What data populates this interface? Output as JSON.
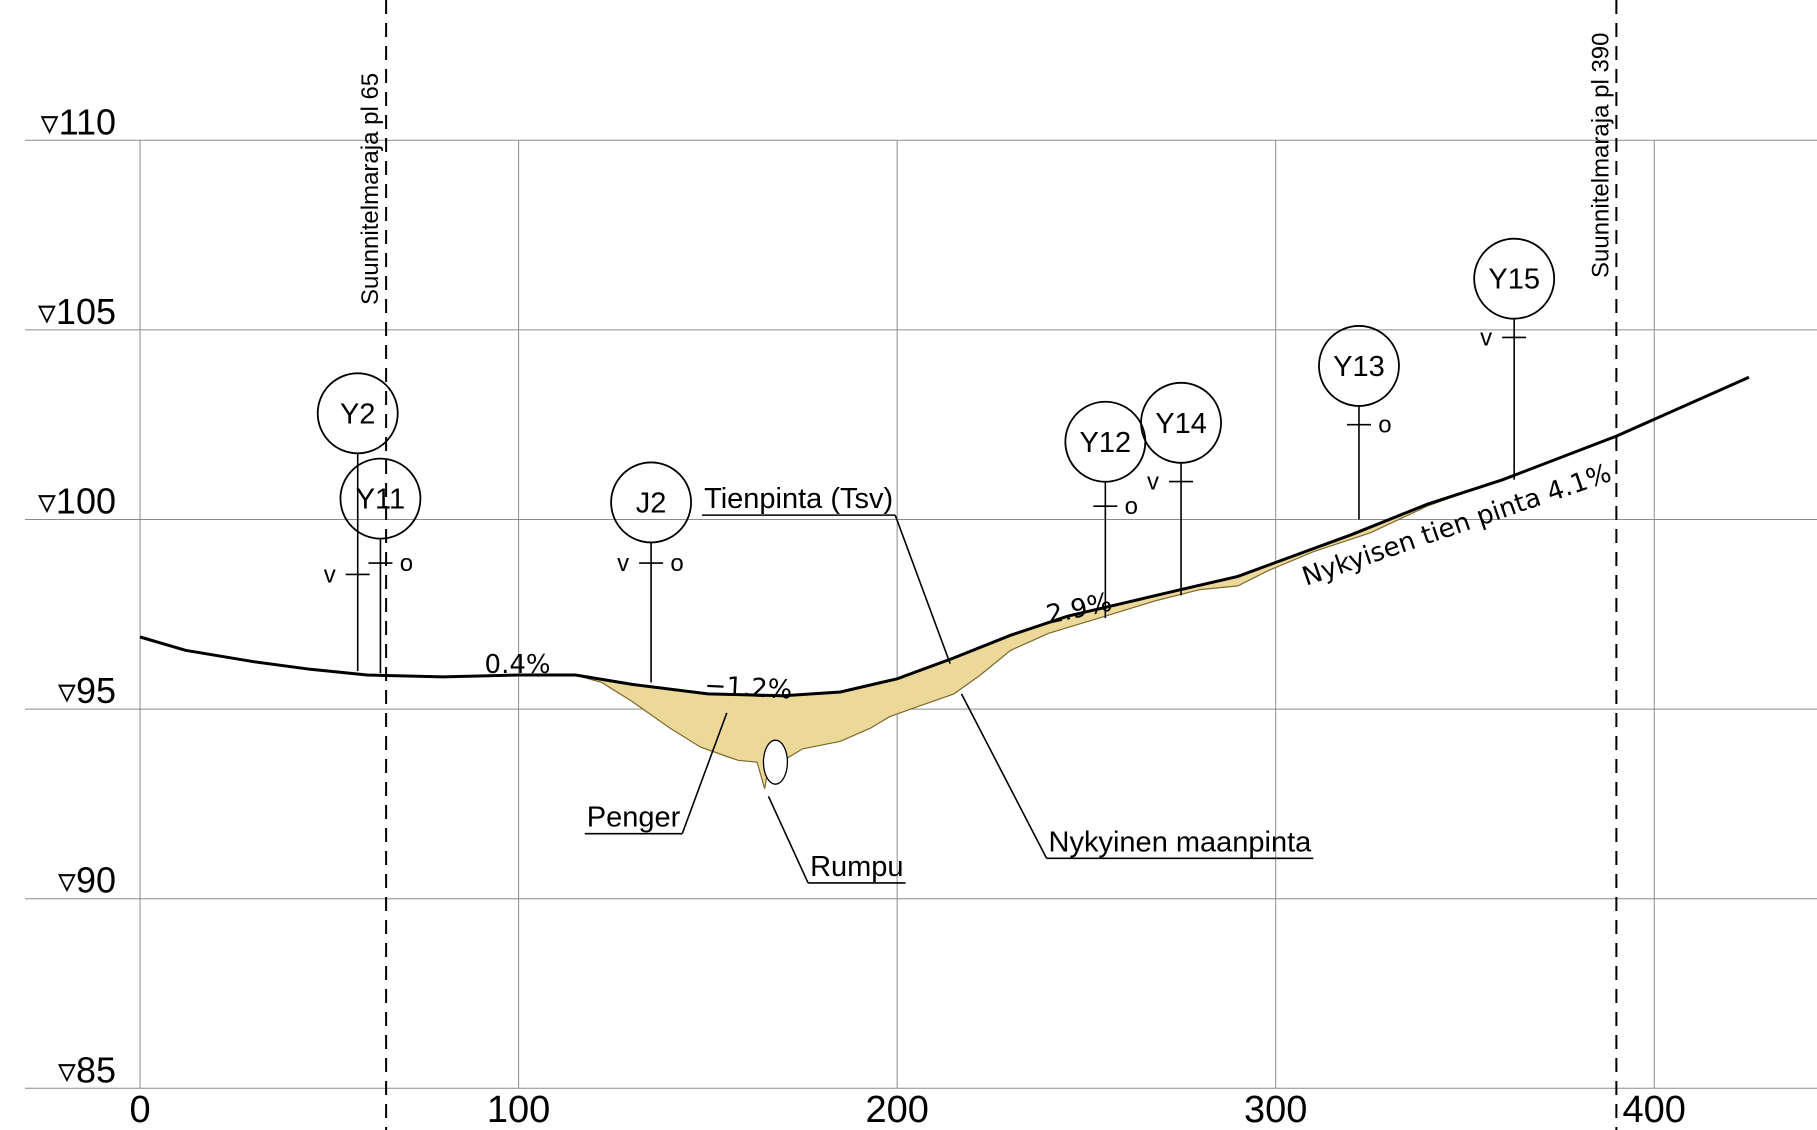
{
  "axes": {
    "x_ticks": [
      "0",
      "100",
      "200",
      "300",
      "400"
    ],
    "y_ticks": [
      "▿110",
      "▿105",
      "▿100",
      "▿95",
      "▿90",
      "▿85"
    ],
    "x_values": [
      0,
      100,
      200,
      300,
      400
    ],
    "y_values": [
      110,
      105,
      100,
      95,
      90,
      85
    ],
    "x_range": [
      -37,
      443
    ],
    "y_range": [
      83.9,
      113.7
    ],
    "grid": true
  },
  "boundaries": [
    {
      "label": "Suunnitelmaraja pl 65",
      "x": 65
    },
    {
      "label": "Suunnitelmaraja pl 390",
      "x": 390
    }
  ],
  "surfaces": {
    "existing_road": [
      [
        0,
        96.9
      ],
      [
        12,
        96.55
      ],
      [
        30,
        96.25
      ],
      [
        45,
        96.05
      ],
      [
        60,
        95.9
      ],
      [
        80,
        95.85
      ],
      [
        100,
        95.9
      ],
      [
        115,
        95.9
      ],
      [
        130,
        95.65
      ],
      [
        150,
        95.4
      ],
      [
        170,
        95.35
      ],
      [
        185,
        95.45
      ],
      [
        200,
        95.8
      ],
      [
        215,
        96.35
      ],
      [
        230,
        96.95
      ],
      [
        245,
        97.45
      ],
      [
        260,
        97.8
      ],
      [
        275,
        98.15
      ],
      [
        290,
        98.5
      ],
      [
        305,
        99.05
      ],
      [
        320,
        99.6
      ],
      [
        340,
        100.4
      ],
      [
        360,
        101.05
      ],
      [
        390,
        102.2
      ],
      [
        425,
        103.75
      ]
    ],
    "ground": [
      [
        115,
        95.9
      ],
      [
        122,
        95.7
      ],
      [
        130,
        95.2
      ],
      [
        140,
        94.5
      ],
      [
        148,
        94.0
      ],
      [
        155,
        93.75
      ],
      [
        158,
        93.65
      ],
      [
        163,
        93.6
      ],
      [
        165,
        92.9
      ],
      [
        166,
        93.5
      ],
      [
        170,
        93.65
      ],
      [
        175,
        93.95
      ],
      [
        185,
        94.15
      ],
      [
        193,
        94.5
      ],
      [
        198,
        94.8
      ],
      [
        205,
        95.05
      ],
      [
        215,
        95.4
      ],
      [
        222,
        95.9
      ],
      [
        230,
        96.55
      ],
      [
        240,
        97.0
      ],
      [
        255,
        97.45
      ],
      [
        268,
        97.85
      ],
      [
        280,
        98.15
      ],
      [
        290,
        98.25
      ],
      [
        298,
        98.65
      ],
      [
        310,
        99.15
      ],
      [
        325,
        99.65
      ],
      [
        340,
        100.35
      ],
      [
        355,
        100.9
      ]
    ],
    "culvert": {
      "x": 166,
      "y": 93.6
    }
  },
  "slopes": [
    {
      "text": "0.4%",
      "x": 91,
      "y": 95.95,
      "angle": 0
    },
    {
      "text": "−1.2%",
      "x": 149,
      "y": 95.4,
      "angle": 3
    },
    {
      "text": "2.9%",
      "x": 240,
      "y": 97.25,
      "angle": -12
    },
    {
      "text": "Nykyisen tien pinta 4.1%",
      "x": 308,
      "y": 98.25,
      "angle": -19
    }
  ],
  "points": [
    {
      "id": "Y2",
      "x": 57.5,
      "ground": 96.0,
      "ticks": [
        {
          "elev": 98.55,
          "side": "v"
        }
      ],
      "circle_y": 102.8
    },
    {
      "id": "Y11",
      "x": 63.5,
      "ground": 95.95,
      "ticks": [
        {
          "elev": 98.85,
          "side": "o"
        }
      ],
      "circle_y": 100.55
    },
    {
      "id": "J2",
      "x": 135,
      "ground": 95.7,
      "ticks": [
        {
          "elev": 98.85,
          "side": "vo"
        }
      ],
      "circle_y": 100.45
    },
    {
      "id": "Y12",
      "x": 255,
      "ground": 97.4,
      "ticks": [
        {
          "elev": 100.35,
          "side": "o"
        }
      ],
      "circle_y": 102.05
    },
    {
      "id": "Y14",
      "x": 275,
      "ground": 98.0,
      "ticks": [
        {
          "elev": 101.0,
          "side": "v"
        }
      ],
      "circle_y": 102.55
    },
    {
      "id": "Y13",
      "x": 322,
      "ground": 100.0,
      "ticks": [
        {
          "elev": 102.5,
          "side": "o"
        }
      ],
      "circle_y": 104.05
    },
    {
      "id": "Y15",
      "x": 363,
      "ground": 101.05,
      "ticks": [
        {
          "elev": 104.8,
          "side": "v"
        }
      ],
      "circle_y": 106.35
    }
  ],
  "callouts": [
    {
      "text": "Tienpinta (Tsv)",
      "label_x": 149,
      "label_y": 100.3,
      "target_x": 214,
      "target_y": 96.2
    },
    {
      "text": "Nykyinen maanpinta",
      "label_x": 240,
      "label_y": 91.25,
      "target_x": 217,
      "target_y": 95.4
    },
    {
      "text": "Penger",
      "label_x": 118,
      "label_y": 91.9,
      "target_x": 155,
      "target_y": 94.9
    },
    {
      "text": "Rumpu",
      "label_x": 177,
      "label_y": 90.6,
      "target_x": 166,
      "target_y": 92.7
    }
  ],
  "colors": {
    "fill": "#ecd99a",
    "fill_stroke": "#7a6a2e",
    "line": "#000000",
    "grid": "#8c8c8c"
  }
}
